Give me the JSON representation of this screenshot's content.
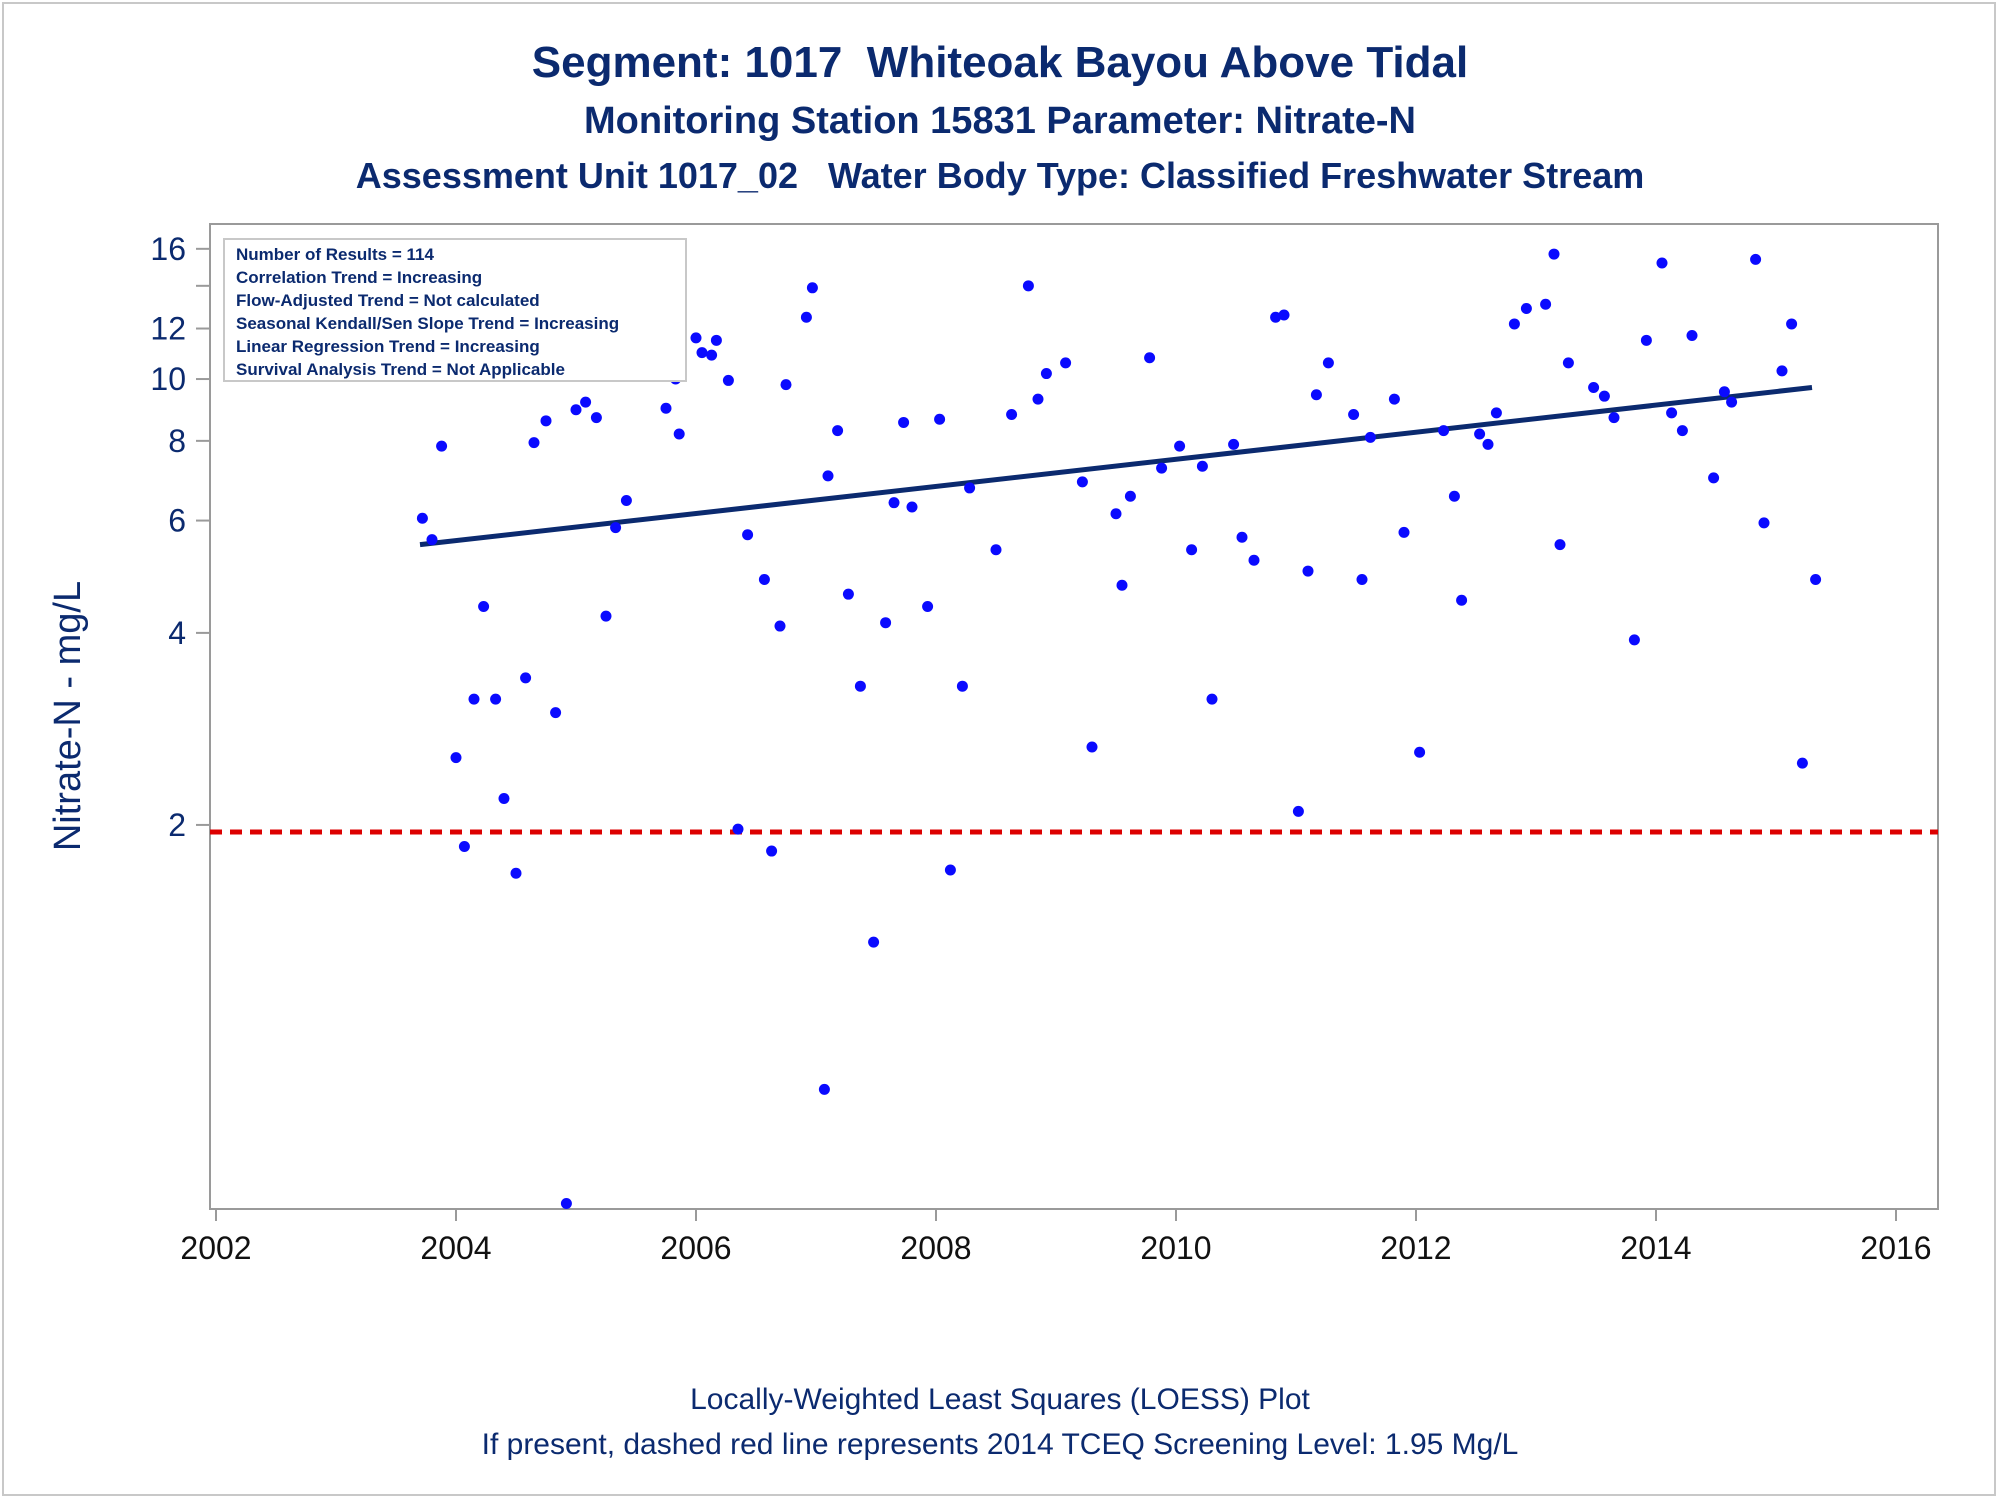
{
  "titles": {
    "line1": "Segment: 1017  Whiteoak Bayou Above Tidal",
    "line2": "Monitoring Station 15831 Parameter: Nitrate-N",
    "line3": "Assessment Unit 1017_02   Water Body Type: Classified Freshwater Stream"
  },
  "footer": {
    "line1": "Locally-Weighted Least Squares (LOESS) Plot",
    "line2": "If present, dashed red line represents 2014 TCEQ Screening Level: 1.95 Mg/L"
  },
  "stats_box": [
    "Number of Results = 114",
    "Correlation Trend = Increasing",
    "Flow-Adjusted Trend = Not calculated",
    "Seasonal Kendall/Sen Slope Trend = Increasing",
    "Linear Regression Trend = Increasing",
    "Survival Analysis Trend = Not Applicable"
  ],
  "colors": {
    "title": "#0b2a6f",
    "points": "#0a0aff",
    "trend_line": "#0b2a6f",
    "screening_line": "#dd0000",
    "axis": "#9a9a9a"
  },
  "chart_data": {
    "type": "scatter",
    "ylabel": "Nitrate-N - mg/L",
    "xlabel": "",
    "y_scale": "log",
    "xlim": [
      2001.95,
      2016.35
    ],
    "ylim": [
      0.5,
      17.5
    ],
    "x_ticks": [
      2002,
      2004,
      2006,
      2008,
      2010,
      2012,
      2014,
      2016
    ],
    "y_ticks": [
      2,
      4,
      6,
      8,
      10,
      12,
      16
    ],
    "y_minor_ticks": [
      14
    ],
    "screening_level": 1.95,
    "trend_line": {
      "x": [
        2003.7,
        2015.3
      ],
      "y": [
        5.5,
        9.7
      ]
    },
    "points": [
      [
        2003.72,
        6.05
      ],
      [
        2003.8,
        5.6
      ],
      [
        2003.88,
        7.85
      ],
      [
        2004.0,
        2.55
      ],
      [
        2004.07,
        1.85
      ],
      [
        2004.15,
        3.15
      ],
      [
        2004.23,
        4.4
      ],
      [
        2004.33,
        3.15
      ],
      [
        2004.4,
        2.2
      ],
      [
        2004.5,
        1.68
      ],
      [
        2004.58,
        3.4
      ],
      [
        2004.65,
        7.95
      ],
      [
        2004.75,
        8.6
      ],
      [
        2004.83,
        3.0
      ],
      [
        2004.92,
        0.51
      ],
      [
        2005.0,
        8.95
      ],
      [
        2005.08,
        9.2
      ],
      [
        2005.17,
        8.7
      ],
      [
        2005.25,
        4.25
      ],
      [
        2005.33,
        5.85
      ],
      [
        2005.42,
        6.45
      ],
      [
        2005.75,
        9.0
      ],
      [
        2005.83,
        10.0
      ],
      [
        2005.86,
        8.2
      ],
      [
        2006.0,
        11.6
      ],
      [
        2006.05,
        11.0
      ],
      [
        2006.13,
        10.9
      ],
      [
        2006.17,
        11.5
      ],
      [
        2006.27,
        9.95
      ],
      [
        2006.35,
        1.97
      ],
      [
        2006.43,
        5.7
      ],
      [
        2006.57,
        4.85
      ],
      [
        2006.63,
        1.82
      ],
      [
        2006.7,
        4.1
      ],
      [
        2006.75,
        9.8
      ],
      [
        2006.92,
        12.5
      ],
      [
        2006.97,
        13.9
      ],
      [
        2007.07,
        0.77
      ],
      [
        2007.1,
        7.05
      ],
      [
        2007.18,
        8.3
      ],
      [
        2007.27,
        4.6
      ],
      [
        2007.37,
        3.3
      ],
      [
        2007.48,
        1.31
      ],
      [
        2007.58,
        4.15
      ],
      [
        2007.65,
        6.4
      ],
      [
        2007.73,
        8.55
      ],
      [
        2007.8,
        6.3
      ],
      [
        2007.93,
        4.4
      ],
      [
        2008.03,
        8.65
      ],
      [
        2008.12,
        1.7
      ],
      [
        2008.22,
        3.3
      ],
      [
        2008.28,
        6.75
      ],
      [
        2008.5,
        5.4
      ],
      [
        2008.63,
        8.8
      ],
      [
        2008.77,
        14.0
      ],
      [
        2008.85,
        9.3
      ],
      [
        2008.92,
        10.2
      ],
      [
        2009.08,
        10.6
      ],
      [
        2009.22,
        6.9
      ],
      [
        2009.3,
        2.65
      ],
      [
        2009.5,
        6.15
      ],
      [
        2009.55,
        4.75
      ],
      [
        2009.62,
        6.55
      ],
      [
        2009.78,
        10.8
      ],
      [
        2009.88,
        7.25
      ],
      [
        2010.03,
        7.85
      ],
      [
        2010.13,
        5.4
      ],
      [
        2010.22,
        7.3
      ],
      [
        2010.3,
        3.15
      ],
      [
        2010.48,
        7.9
      ],
      [
        2010.55,
        5.65
      ],
      [
        2010.65,
        5.2
      ],
      [
        2010.83,
        12.5
      ],
      [
        2010.9,
        12.6
      ],
      [
        2011.02,
        2.1
      ],
      [
        2011.1,
        5.0
      ],
      [
        2011.17,
        9.45
      ],
      [
        2011.27,
        10.6
      ],
      [
        2011.48,
        8.8
      ],
      [
        2011.55,
        4.85
      ],
      [
        2011.62,
        8.1
      ],
      [
        2011.82,
        9.3
      ],
      [
        2011.9,
        5.75
      ],
      [
        2012.03,
        2.6
      ],
      [
        2012.23,
        8.3
      ],
      [
        2012.32,
        6.55
      ],
      [
        2012.38,
        4.5
      ],
      [
        2012.53,
        8.2
      ],
      [
        2012.6,
        7.9
      ],
      [
        2012.67,
        8.85
      ],
      [
        2012.82,
        12.2
      ],
      [
        2012.92,
        12.9
      ],
      [
        2013.08,
        13.1
      ],
      [
        2013.15,
        15.7
      ],
      [
        2013.2,
        5.5
      ],
      [
        2013.27,
        10.6
      ],
      [
        2013.48,
        9.7
      ],
      [
        2013.57,
        9.4
      ],
      [
        2013.65,
        8.7
      ],
      [
        2013.82,
        3.9
      ],
      [
        2013.92,
        11.5
      ],
      [
        2014.05,
        15.2
      ],
      [
        2014.13,
        8.85
      ],
      [
        2014.22,
        8.3
      ],
      [
        2014.3,
        11.7
      ],
      [
        2014.48,
        7.0
      ],
      [
        2014.57,
        9.55
      ],
      [
        2014.63,
        9.2
      ],
      [
        2014.83,
        15.4
      ],
      [
        2014.9,
        5.95
      ],
      [
        2015.05,
        10.3
      ],
      [
        2015.13,
        12.2
      ],
      [
        2015.22,
        2.5
      ],
      [
        2015.33,
        4.85
      ]
    ]
  }
}
